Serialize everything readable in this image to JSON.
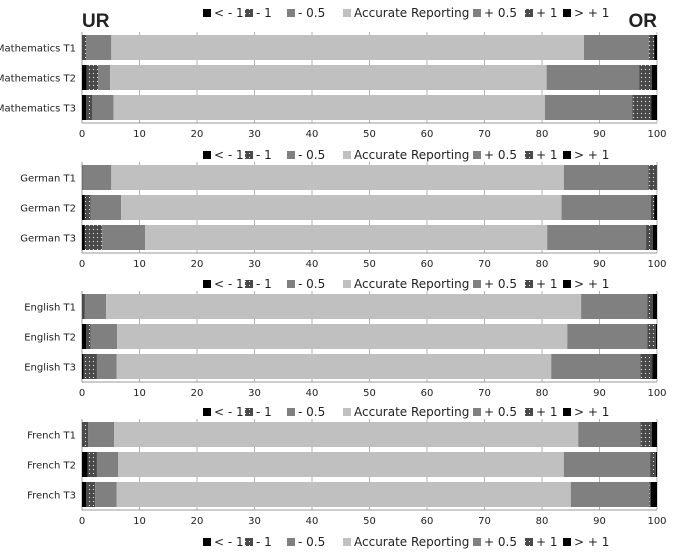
{
  "chart_data": {
    "type": "bar",
    "orientation": "horizontal",
    "stacked": true,
    "left_label": "UR",
    "right_label": "OR",
    "xlim": [
      0,
      100
    ],
    "xticks": [
      0,
      10,
      20,
      30,
      40,
      50,
      60,
      70,
      80,
      90,
      100
    ],
    "grid": "vertical",
    "legend_placement": "top of each panel and bottom",
    "legend": [
      "< - 1",
      "- 1",
      "- 0.5",
      "Accurate Reporting",
      "+ 0.5",
      "+ 1",
      "> + 1"
    ],
    "colors": [
      "#000000",
      "#4a4a4a",
      "#808080",
      "#c0c0c0",
      "#808080",
      "#4a4a4a",
      "#000000"
    ],
    "patterns": [
      "solid",
      "dotted",
      "solid",
      "solid",
      "solid",
      "dotted",
      "solid"
    ],
    "panels": [
      {
        "categories": [
          "Mathematics T1",
          "Mathematics T2",
          "Mathematics T3"
        ],
        "values": [
          [
            0,
            0.7,
            4.4,
            82.2,
            11.3,
            0.9,
            0.5
          ],
          [
            0.8,
            2.0,
            2.1,
            75.9,
            16.1,
            2.2,
            0.9
          ],
          [
            0.7,
            1.1,
            3.7,
            75.0,
            15.2,
            3.3,
            1.0
          ]
        ]
      },
      {
        "categories": [
          "German T1",
          "German T2",
          "German T3"
        ],
        "values": [
          [
            0,
            0.1,
            5.0,
            78.7,
            14.7,
            1.5,
            0
          ],
          [
            0.5,
            1.0,
            5.3,
            76.6,
            15.5,
            0.6,
            0.5
          ],
          [
            0.5,
            3.0,
            7.5,
            69.9,
            17.2,
            1.2,
            0.7
          ]
        ]
      },
      {
        "categories": [
          "English T1",
          "English T2",
          "English T3"
        ],
        "values": [
          [
            0,
            0.5,
            3.7,
            82.6,
            11.5,
            1.0,
            0.7
          ],
          [
            0.7,
            0.8,
            4.6,
            78.3,
            13.9,
            1.5,
            0.2
          ],
          [
            0.3,
            2.3,
            3.4,
            75.6,
            15.5,
            2.1,
            0.8
          ]
        ]
      },
      {
        "categories": [
          "French T1",
          "French T2",
          "French T3"
        ],
        "values": [
          [
            0,
            1.1,
            4.5,
            80.7,
            10.8,
            2.0,
            0.9
          ],
          [
            1.0,
            1.6,
            3.7,
            77.5,
            15.0,
            1.0,
            0.2
          ],
          [
            0.7,
            1.6,
            3.7,
            79.0,
            13.7,
            0.2,
            1.1
          ]
        ]
      }
    ]
  }
}
